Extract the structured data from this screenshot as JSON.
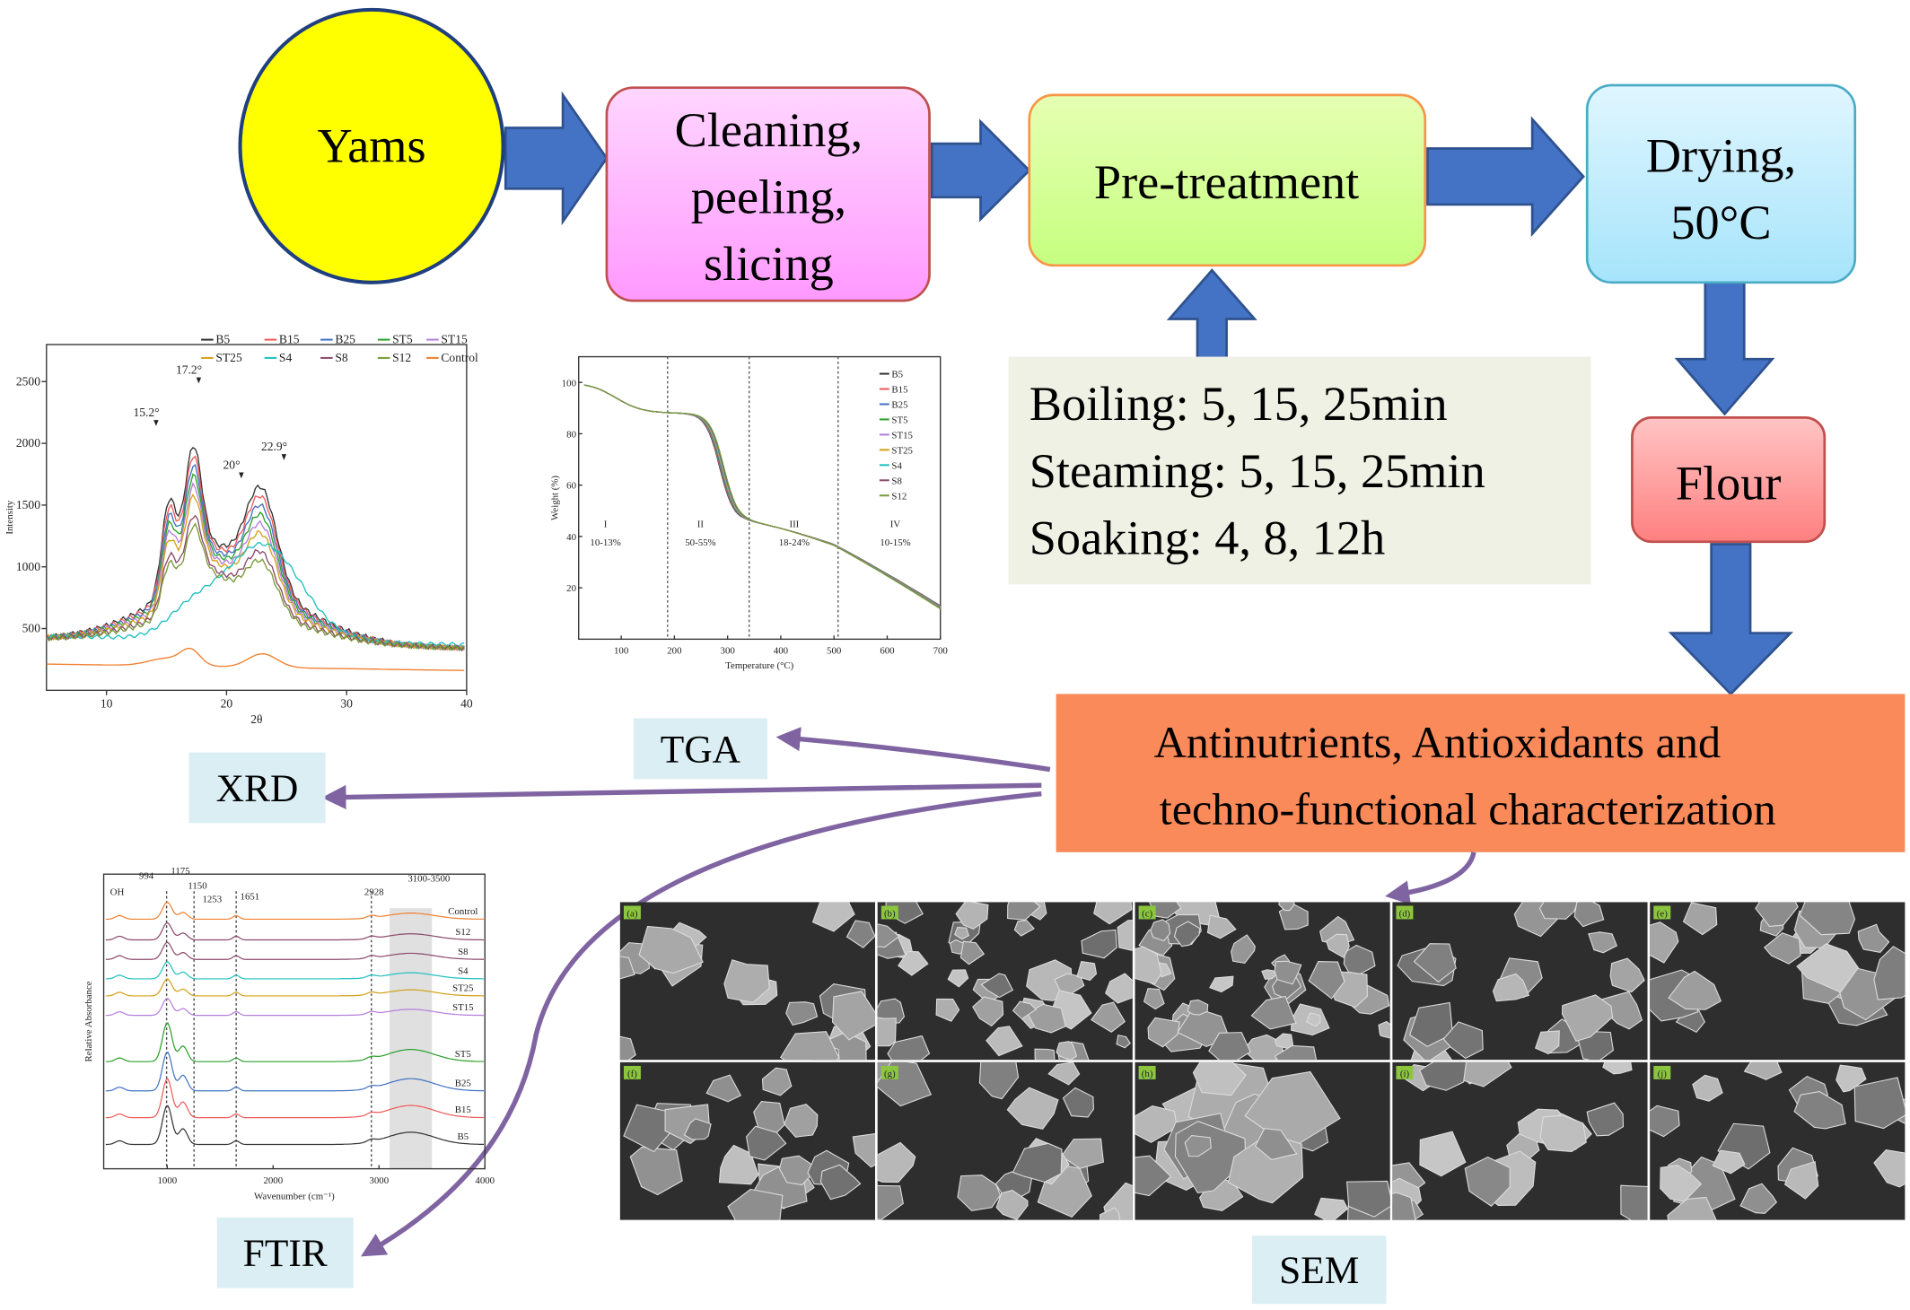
{
  "flow": {
    "yams": "Yams",
    "cleaning": [
      "Cleaning,",
      "peeling,",
      "slicing"
    ],
    "pretreatment": "Pre-treatment",
    "drying": [
      "Drying,",
      "50°C"
    ],
    "treatments": [
      "Boiling: 5, 15, 25min",
      "Steaming: 5, 15, 25min",
      "Soaking: 4, 8, 12h"
    ],
    "flour": "Flour",
    "characterization": [
      "Antinutrients, Antioxidants and",
      "techno-functional characterization"
    ]
  },
  "methods": {
    "tga": "TGA",
    "xrd": "XRD",
    "ftir": "FTIR",
    "sem": "SEM"
  },
  "xrd": {
    "legend": [
      "B5",
      "B15",
      "B25",
      "ST5",
      "ST15",
      "ST25",
      "S4",
      "S8",
      "S12",
      "Control"
    ],
    "peaks": [
      "15.2°",
      "17.2°",
      "20°",
      "22.9°"
    ],
    "x_label": "2θ",
    "y_label": "Intensity",
    "xlim": [
      5,
      40
    ],
    "xticks": [
      10,
      20,
      30,
      40
    ],
    "ylim": [
      0,
      2800
    ],
    "yticks": [
      500,
      1000,
      1500,
      2000,
      2500
    ]
  },
  "tga": {
    "legend": [
      "B5",
      "B15",
      "B25",
      "ST5",
      "ST15",
      "ST25",
      "S4",
      "S8",
      "S12"
    ],
    "stages": [
      "I",
      "II",
      "III",
      "IV"
    ],
    "losses": [
      "10-13%",
      "50-55%",
      "18-24%",
      "10-15%"
    ],
    "x_label": "Temperature (°C)",
    "y_label": "Weight (%)",
    "xlim": [
      20,
      700
    ],
    "xticks": [
      100,
      200,
      300,
      400,
      500,
      600,
      700
    ],
    "ylim": [
      0,
      110
    ],
    "yticks": [
      20,
      40,
      60,
      80,
      100
    ]
  },
  "ftir": {
    "series": [
      "Control",
      "S12",
      "S8",
      "S4",
      "ST25",
      "ST15",
      "ST5",
      "B25",
      "B15",
      "B5"
    ],
    "peaks": [
      "OH",
      "994",
      "1175",
      "1150",
      "1253",
      "1651",
      "2928",
      "3100-3500"
    ],
    "x_label": "Wavenumber (cm⁻¹)",
    "y_label": "Relative Absorbance",
    "xlim": [
      400,
      4000
    ],
    "xticks": [
      1000,
      2000,
      3000,
      4000
    ]
  },
  "sem": {
    "panels": [
      "(a)",
      "(b)",
      "(c)",
      "(d)",
      "(e)",
      "(f)",
      "(g)",
      "(h)",
      "(i)",
      "(j)"
    ]
  }
}
